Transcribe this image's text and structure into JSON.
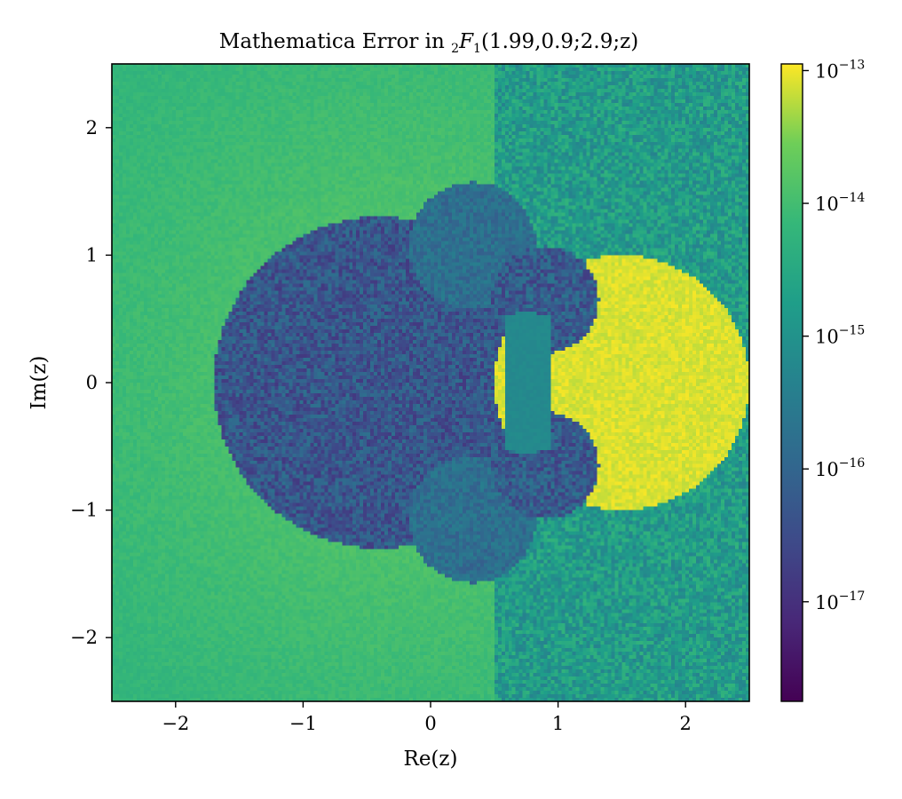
{
  "chart_data": {
    "type": "heatmap",
    "title": {
      "prefix": "Mathematica Error in ",
      "sub_left": "2",
      "fn": "F",
      "sub_right": "1",
      "args": "(1.99,0.9;2.9;z)"
    },
    "xlabel": "Re(z)",
    "ylabel": "Im(z)",
    "xlim": [
      -2.5,
      2.5
    ],
    "ylim": [
      -2.5,
      2.5
    ],
    "xticks": [
      -2,
      -1,
      0,
      1,
      2
    ],
    "yticks": [
      -2,
      -1,
      0,
      1,
      2
    ],
    "xtick_labels": [
      "−2",
      "−1",
      "0",
      "1",
      "2"
    ],
    "ytick_labels": [
      "−2",
      "−1",
      "0",
      "1",
      "2"
    ],
    "colormap": "viridis",
    "colorbar": {
      "scale": "log",
      "range_exp": [
        -17.75,
        -12.95
      ],
      "ticks": [
        {
          "base": "10",
          "exp": "−13",
          "value_exp": -13
        },
        {
          "base": "10",
          "exp": "−14",
          "value_exp": -14
        },
        {
          "base": "10",
          "exp": "−15",
          "value_exp": -15
        },
        {
          "base": "10",
          "exp": "−16",
          "value_exp": -16
        },
        {
          "base": "10",
          "exp": "−17",
          "value_exp": -17
        }
      ]
    },
    "grid": false,
    "regions": [
      {
        "name": "left half-plane background",
        "re_max": 0.5,
        "log10_error_center": -13.7,
        "log10_error_edge": -14.2
      },
      {
        "name": "right half-plane background",
        "re_min": 0.5,
        "log10_error": -14.8,
        "noise": 0.55
      },
      {
        "name": "central disk",
        "center": [
          -0.4,
          0.0
        ],
        "radius": 1.3,
        "log10_error": -16.2
      },
      {
        "name": "upper bump",
        "center": [
          0.33,
          1.07
        ],
        "radius": 0.5,
        "log10_error": -15.8
      },
      {
        "name": "lower bump",
        "center": [
          0.33,
          -1.07
        ],
        "radius": 0.5,
        "log10_error": -15.8
      },
      {
        "name": "upper wedge",
        "center": [
          0.9,
          0.65
        ],
        "radius": 0.42,
        "log10_error": -16.2
      },
      {
        "name": "lower wedge",
        "center": [
          0.9,
          -0.65
        ],
        "radius": 0.42,
        "log10_error": -16.2
      },
      {
        "name": "inner lens",
        "center": [
          0.75,
          0.0
        ],
        "radius": 0.55,
        "log10_error": -15.2
      },
      {
        "name": "right disk",
        "center": [
          1.5,
          0.0
        ],
        "radius": 1.0,
        "log10_error": -13.1
      }
    ]
  }
}
